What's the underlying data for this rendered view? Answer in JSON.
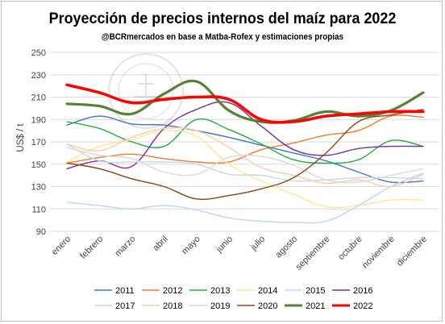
{
  "chart_data": {
    "type": "line",
    "title": "Proyección de precios internos del maíz para 2022",
    "subtitle": "@BCRmercados en base a Matba-Rofex y estimaciones propias",
    "ylabel": "US$ / t",
    "xlabel": "",
    "ylim": [
      90,
      250
    ],
    "yticks": [
      90,
      110,
      130,
      150,
      170,
      190,
      210,
      230,
      250
    ],
    "grid": true,
    "legend_position": "bottom",
    "categories": [
      "enero",
      "febrero",
      "marzo",
      "abril",
      "mayo",
      "junio",
      "julio",
      "agosto",
      "septiembre",
      "octubre",
      "noviembre",
      "diciembre"
    ],
    "series": [
      {
        "name": "2011",
        "color": "#4472c4",
        "width": 1.4,
        "values": [
          185,
          193,
          186,
          185,
          180,
          174,
          167,
          160,
          153,
          143,
          134,
          135
        ]
      },
      {
        "name": "2012",
        "color": "#ed7d31",
        "width": 1.4,
        "values": [
          151,
          156,
          159,
          155,
          152,
          152,
          163,
          169,
          176,
          180,
          193,
          192
        ]
      },
      {
        "name": "2013",
        "color": "#27a844",
        "width": 1.4,
        "values": [
          188,
          182,
          170,
          166,
          190,
          181,
          168,
          154,
          151,
          154,
          171,
          166
        ]
      },
      {
        "name": "2014",
        "color": "#ffe699",
        "width": 1.4,
        "values": [
          152,
          166,
          172,
          180,
          175,
          150,
          135,
          123,
          112,
          113,
          118,
          118
        ]
      },
      {
        "name": "2015",
        "color": "#bdd7ee",
        "width": 1.4,
        "values": [
          116,
          113,
          110,
          113,
          109,
          102,
          99,
          98,
          99,
          113,
          130,
          142
        ]
      },
      {
        "name": "2016",
        "color": "#7030a0",
        "width": 1.4,
        "values": [
          146,
          153,
          148,
          182,
          199,
          205,
          184,
          163,
          158,
          164,
          166,
          166
        ]
      },
      {
        "name": "2017",
        "color": "#c9d6e8",
        "width": 1.4,
        "values": [
          168,
          153,
          152,
          152,
          150,
          141,
          140,
          135,
          136,
          138,
          138,
          137
        ]
      },
      {
        "name": "2018",
        "color": "#f8cbad",
        "width": 1.4,
        "values": [
          168,
          162,
          174,
          182,
          180,
          165,
          147,
          140,
          133,
          136,
          130,
          141
        ]
      },
      {
        "name": "2019",
        "color": "#d9d9d9",
        "width": 1.4,
        "values": [
          165,
          158,
          155,
          143,
          141,
          156,
          157,
          149,
          136,
          134,
          140,
          146
        ]
      },
      {
        "name": "2020",
        "color": "#8b4513",
        "width": 1.4,
        "values": [
          151,
          146,
          137,
          130,
          119,
          122,
          128,
          138,
          160,
          188,
          194,
          199
        ]
      },
      {
        "name": "2021",
        "color": "#548235",
        "width": 3.2,
        "values": [
          204,
          202,
          195,
          213,
          224,
          198,
          188,
          189,
          197,
          193,
          198,
          214
        ]
      },
      {
        "name": "2022",
        "color": "#ff0000",
        "width": 3.6,
        "values": [
          221,
          214,
          205,
          208,
          210,
          208,
          190,
          188,
          193,
          195,
          197,
          197
        ]
      }
    ]
  }
}
